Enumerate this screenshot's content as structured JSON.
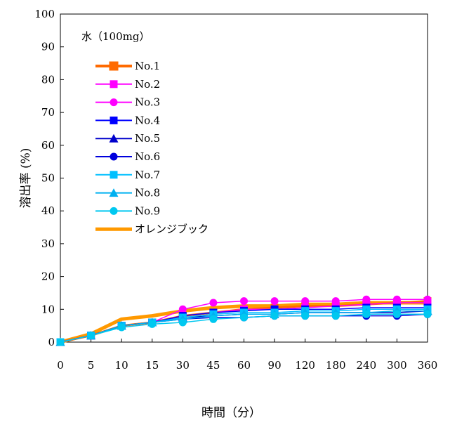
{
  "chart_data": {
    "type": "line",
    "title": "",
    "xlabel": "時間（分）",
    "ylabel": "溶出率 (%)",
    "legend_title": "水（100mg）",
    "legend_position": "top-left",
    "grid": false,
    "ylim": [
      0,
      100
    ],
    "y_ticks": [
      0,
      10,
      20,
      30,
      40,
      50,
      60,
      70,
      80,
      90,
      100
    ],
    "categories": [
      "0",
      "5",
      "10",
      "15",
      "30",
      "45",
      "60",
      "90",
      "120",
      "180",
      "240",
      "300",
      "360"
    ],
    "series": [
      {
        "name": "No.1",
        "color": "#ff6a00",
        "marker": "square",
        "values": [
          0,
          2,
          5,
          6,
          8,
          9,
          10,
          10.5,
          11,
          11,
          11.5,
          12,
          12.5
        ]
      },
      {
        "name": "No.2",
        "color": "#ff00ff",
        "marker": "square",
        "values": [
          0,
          2,
          5,
          6,
          8,
          9,
          10,
          10,
          10.5,
          11,
          11.5,
          12,
          12
        ]
      },
      {
        "name": "No.3",
        "color": "#ff00ff",
        "marker": "circle",
        "values": [
          0,
          2,
          5,
          6,
          10,
          12,
          12.5,
          12.5,
          12.5,
          12.5,
          13,
          13,
          13
        ]
      },
      {
        "name": "No.4",
        "color": "#0000ff",
        "marker": "square",
        "values": [
          0,
          2,
          5,
          6,
          8,
          9,
          9.5,
          10,
          10,
          10,
          10.5,
          10.5,
          10.5
        ]
      },
      {
        "name": "No.5",
        "color": "#0000cc",
        "marker": "triangle",
        "values": [
          0,
          2,
          5,
          6,
          7.5,
          8,
          8.5,
          8.5,
          9,
          9,
          9,
          9,
          9.5
        ]
      },
      {
        "name": "No.6",
        "color": "#0000dd",
        "marker": "circle",
        "values": [
          0,
          2,
          5,
          6,
          7,
          7.5,
          7.5,
          8,
          8,
          8,
          8,
          8,
          8.5
        ]
      },
      {
        "name": "No.7",
        "color": "#00c0ff",
        "marker": "square",
        "values": [
          0,
          2,
          5,
          6,
          7.5,
          8.5,
          9,
          9,
          9.5,
          9.5,
          10,
          10,
          10
        ]
      },
      {
        "name": "No.8",
        "color": "#00b0f0",
        "marker": "triangle",
        "values": [
          0,
          2,
          5,
          6,
          7,
          8,
          8.5,
          8.5,
          9,
          9,
          9,
          9.5,
          9.5
        ]
      },
      {
        "name": "No.9",
        "color": "#00c8f0",
        "marker": "circle",
        "values": [
          0,
          2,
          4.5,
          5.5,
          6,
          7,
          7.5,
          8,
          8,
          8,
          8.5,
          8.5,
          8.5
        ]
      },
      {
        "name": "オレンジブック",
        "color": "#ff9900",
        "marker": "none",
        "values": [
          0,
          2.5,
          7,
          8,
          9.5,
          10.5,
          11,
          11,
          11.5,
          11.5,
          12,
          12,
          12
        ]
      }
    ]
  }
}
